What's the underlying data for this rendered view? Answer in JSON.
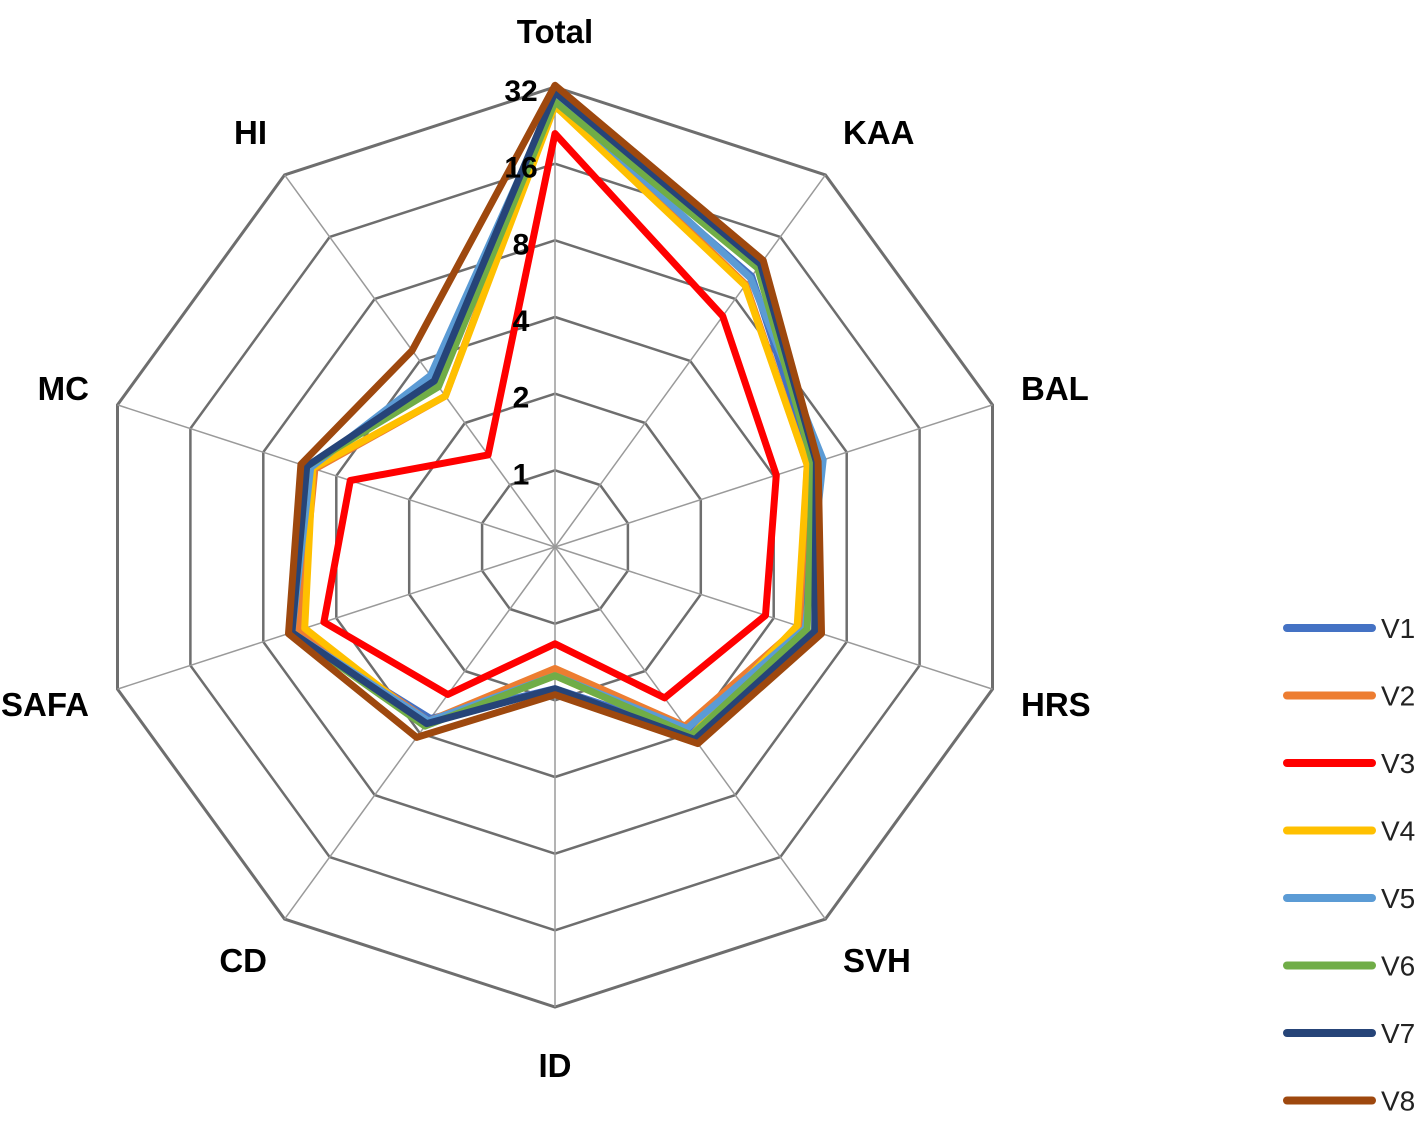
{
  "chart_data": {
    "type": "radar",
    "title": "",
    "scale": "log2",
    "range": [
      1,
      32
    ],
    "categories": [
      "Total",
      "KAA",
      "BAL",
      "HRS",
      "SVH",
      "ID",
      "CD",
      "SAFA",
      "MC",
      "HI"
    ],
    "ticks": [
      {
        "value": 1,
        "label": "1"
      },
      {
        "value": 2,
        "label": "2"
      },
      {
        "value": 4,
        "label": "4"
      },
      {
        "value": 8,
        "label": "8"
      },
      {
        "value": 16,
        "label": "16"
      },
      {
        "value": 32,
        "label": "32"
      }
    ],
    "grid": true,
    "legend": "right",
    "series": [
      {
        "name": "V1",
        "color": "#4472C4",
        "values": [
          26.9,
          10.3,
          5.8,
          5.4,
          4.0,
          1.8,
          3.4,
          6.1,
          5.2,
          3.1
        ]
      },
      {
        "name": "V2",
        "color": "#ED7D31",
        "values": [
          28.1,
          9.4,
          5.5,
          5.1,
          3.7,
          1.5,
          3.5,
          5.7,
          4.9,
          2.7
        ]
      },
      {
        "name": "V3",
        "color": "#FF0000",
        "values": [
          21.0,
          6.6,
          4.1,
          3.7,
          2.7,
          1.2,
          2.6,
          4.5,
          3.5,
          1.4
        ]
      },
      {
        "name": "V4",
        "color": "#FFC000",
        "values": [
          27.0,
          9.3,
          5.5,
          5.0,
          4.1,
          1.6,
          3.6,
          5.4,
          5.0,
          2.7
        ]
      },
      {
        "name": "V5",
        "color": "#5B9BD5",
        "values": [
          29.0,
          10.1,
          6.4,
          5.4,
          3.8,
          1.6,
          3.5,
          6.1,
          5.1,
          3.4
        ]
      },
      {
        "name": "V6",
        "color": "#70AD47",
        "values": [
          28.0,
          11.3,
          5.8,
          5.5,
          4.1,
          1.6,
          3.7,
          6.1,
          5.3,
          3.0
        ]
      },
      {
        "name": "V7",
        "color": "#264478",
        "values": [
          30.5,
          11.8,
          6.0,
          5.9,
          4.3,
          1.8,
          3.6,
          6.1,
          5.3,
          3.2
        ]
      },
      {
        "name": "V8",
        "color": "#9E480E",
        "values": [
          32.5,
          12.3,
          6.1,
          6.3,
          4.5,
          1.9,
          4.2,
          6.3,
          5.6,
          4.5
        ]
      }
    ]
  }
}
